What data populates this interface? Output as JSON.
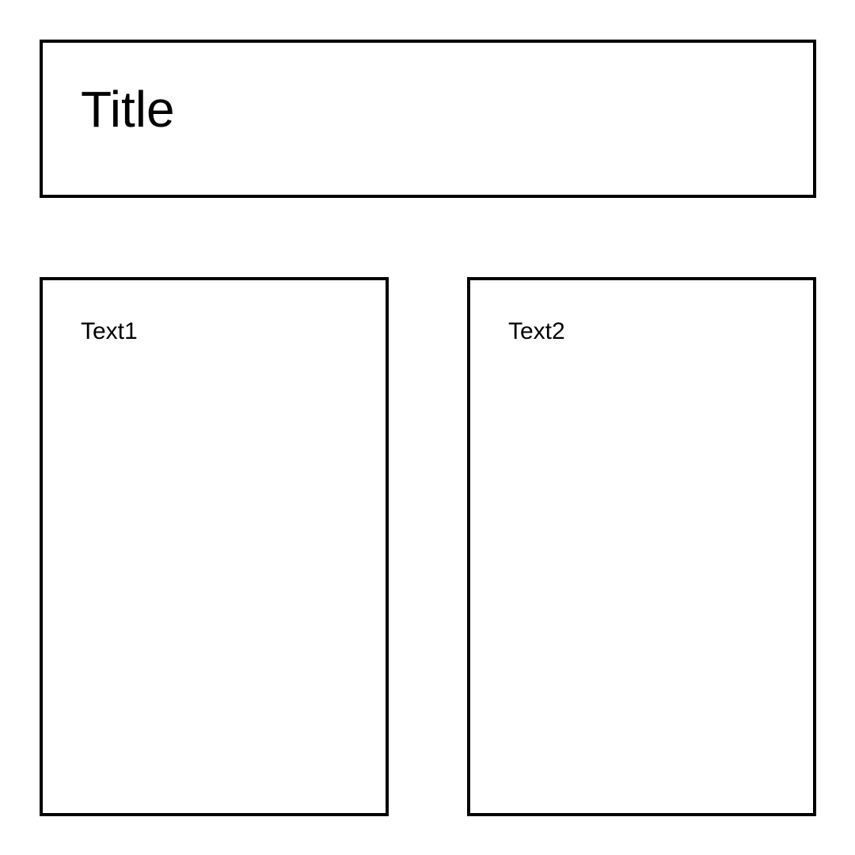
{
  "header": {
    "title": "Title"
  },
  "panels": [
    {
      "text": "Text1"
    },
    {
      "text": "Text2"
    }
  ],
  "colors": {
    "border": "#000000",
    "background": "#ffffff",
    "text": "#000000"
  }
}
